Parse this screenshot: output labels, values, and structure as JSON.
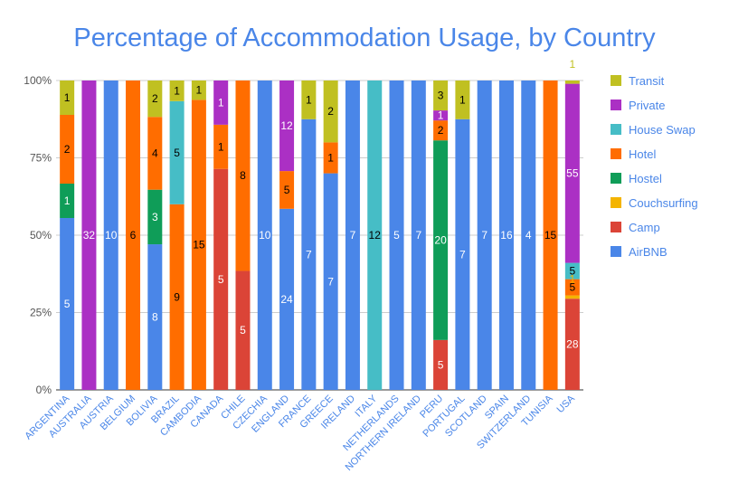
{
  "chart_data": {
    "type": "bar",
    "stacked": true,
    "normalized": true,
    "title": "Percentage of Accommodation Usage, by Country",
    "y_tick_labels": [
      "0%",
      "25%",
      "50%",
      "75%",
      "100%"
    ],
    "ylim": [
      0,
      100
    ],
    "grid": true,
    "legend_position": "right",
    "categories": [
      "ARGENTINA",
      "AUSTRALIA",
      "AUSTRIA",
      "BELGIUM",
      "BOLIVIA",
      "BRAZIL",
      "CAMBODIA",
      "CANADA",
      "CHILE",
      "CZECHIA",
      "ENGLAND",
      "FRANCE",
      "GREECE",
      "IRELAND",
      "ITALY",
      "NETHERLANDS",
      "NORTHERN IRELAND",
      "PERU",
      "PORTUGAL",
      "SCOTLAND",
      "SPAIN",
      "SWITZERLAND",
      "TUNISIA",
      "USA"
    ],
    "series": [
      {
        "name": "AirBNB",
        "color": "#4a86e8",
        "label_color": "#ffffff",
        "values": [
          5,
          0,
          10,
          0,
          8,
          0,
          0,
          0,
          0,
          10,
          24,
          7,
          7,
          7,
          0,
          5,
          7,
          0,
          7,
          7,
          16,
          4,
          0,
          0
        ]
      },
      {
        "name": "Camp",
        "color": "#db4437",
        "label_color": "#ffffff",
        "values": [
          0,
          0,
          0,
          0,
          0,
          0,
          0,
          5,
          5,
          0,
          0,
          0,
          0,
          0,
          0,
          0,
          0,
          5,
          0,
          0,
          0,
          0,
          0,
          28
        ]
      },
      {
        "name": "Couchsurfing",
        "color": "#f4b400",
        "label_color": "#000000",
        "values": [
          0,
          0,
          0,
          0,
          0,
          0,
          0,
          0,
          0,
          0,
          0,
          0,
          0,
          0,
          0,
          0,
          0,
          0,
          0,
          0,
          0,
          0,
          0,
          1
        ]
      },
      {
        "name": "Hostel",
        "color": "#0f9d58",
        "label_color": "#ffffff",
        "values": [
          1,
          0,
          0,
          0,
          3,
          0,
          0,
          0,
          0,
          0,
          0,
          0,
          0,
          0,
          0,
          0,
          0,
          20,
          0,
          0,
          0,
          0,
          0,
          0
        ]
      },
      {
        "name": "Hotel",
        "color": "#ff6d00",
        "label_color": "#000000",
        "values": [
          2,
          0,
          0,
          6,
          4,
          9,
          15,
          1,
          8,
          0,
          5,
          0,
          1,
          0,
          0,
          0,
          0,
          2,
          0,
          0,
          0,
          0,
          15,
          5
        ]
      },
      {
        "name": "House Swap",
        "color": "#46bdc6",
        "label_color": "#000000",
        "values": [
          0,
          0,
          0,
          0,
          0,
          5,
          0,
          0,
          0,
          0,
          0,
          0,
          0,
          0,
          12,
          0,
          0,
          0,
          0,
          0,
          0,
          0,
          0,
          5
        ]
      },
      {
        "name": "Private",
        "color": "#ab30c4",
        "label_color": "#ffffff",
        "values": [
          0,
          32,
          0,
          0,
          0,
          0,
          0,
          1,
          0,
          0,
          12,
          0,
          0,
          0,
          0,
          0,
          0,
          1,
          0,
          0,
          0,
          0,
          0,
          55
        ]
      },
      {
        "name": "Transit",
        "color": "#c0c021",
        "label_color": "#000000",
        "values": [
          1,
          0,
          0,
          0,
          2,
          1,
          1,
          0,
          0,
          0,
          0,
          1,
          2,
          0,
          0,
          0,
          0,
          3,
          1,
          0,
          0,
          0,
          0,
          1
        ]
      }
    ],
    "legend_order": [
      "Transit",
      "Private",
      "House Swap",
      "Hotel",
      "Hostel",
      "Couchsurfing",
      "Camp",
      "AirBNB"
    ]
  }
}
